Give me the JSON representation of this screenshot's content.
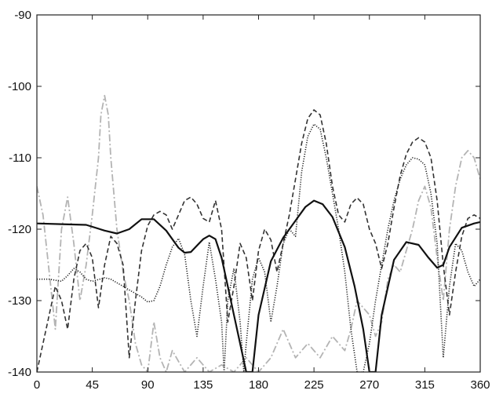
{
  "chart_data": {
    "type": "line",
    "title": "",
    "xlabel": "",
    "ylabel": "",
    "xlim": [
      0,
      360
    ],
    "ylim": [
      -140,
      -90
    ],
    "x_ticks": [
      "0",
      "45",
      "90",
      "135",
      "180",
      "225",
      "270",
      "315",
      "360"
    ],
    "y_ticks": [
      "-90",
      "-100",
      "-110",
      "-120",
      "-130",
      "-140"
    ],
    "grid": false,
    "legend": "none",
    "series": [
      {
        "style": "solid",
        "color": "#111111",
        "x": [
          0,
          20,
          40,
          55,
          65,
          75,
          85,
          95,
          105,
          115,
          120,
          125,
          135,
          140,
          145,
          150,
          155,
          160,
          165,
          170,
          175,
          180,
          190,
          200,
          210,
          218,
          225,
          232,
          240,
          250,
          258,
          265,
          270,
          275,
          280,
          290,
          300,
          310,
          318,
          325,
          330,
          335,
          345,
          355,
          360
        ],
        "y": [
          -119.2,
          -119.3,
          -119.4,
          -120.2,
          -120.6,
          -120.0,
          -118.6,
          -118.6,
          -120.2,
          -122.6,
          -123.3,
          -123.2,
          -121.4,
          -120.9,
          -121.4,
          -124.0,
          -128.0,
          -132.0,
          -136.0,
          -140.0,
          -140.0,
          -132.0,
          -124.5,
          -121.2,
          -118.8,
          -116.9,
          -116.0,
          -116.5,
          -118.3,
          -122.5,
          -128.0,
          -134.0,
          -140.0,
          -140.0,
          -132.0,
          -124.3,
          -121.8,
          -122.2,
          -124.0,
          -125.4,
          -125.0,
          -122.5,
          -119.8,
          -119.2,
          -119.0
        ]
      },
      {
        "style": "dotted",
        "color": "#222222",
        "x": [
          0,
          10,
          20,
          25,
          30,
          35,
          40,
          45,
          55,
          60,
          65,
          70,
          75,
          80,
          85,
          90,
          95,
          100,
          105,
          110,
          115,
          120,
          125,
          130,
          135,
          140,
          145,
          150,
          152,
          155,
          160,
          165,
          168,
          170,
          175,
          180,
          185,
          190,
          195,
          200,
          205,
          210,
          215,
          220,
          225,
          230,
          235,
          240,
          245,
          250,
          255,
          260,
          265,
          270,
          275,
          280,
          285,
          290,
          295,
          300,
          305,
          310,
          315,
          320,
          325,
          330,
          335,
          340,
          345,
          350,
          355,
          360
        ],
        "y": [
          -127.0,
          -127.0,
          -127.3,
          -126.5,
          -125.5,
          -126.0,
          -127.0,
          -127.3,
          -126.8,
          -127.0,
          -127.5,
          -128.0,
          -128.5,
          -129.0,
          -129.5,
          -130.2,
          -130.0,
          -128.0,
          -125.0,
          -122.5,
          -121.3,
          -123.5,
          -130.0,
          -135.0,
          -128.0,
          -121.8,
          -127.0,
          -133.0,
          -140.0,
          -130.0,
          -125.5,
          -133.0,
          -140.0,
          -136.0,
          -127.0,
          -124.0,
          -126.0,
          -133.0,
          -128.0,
          -122.0,
          -120.0,
          -121.0,
          -112.0,
          -107.0,
          -105.3,
          -106.0,
          -110.0,
          -115.0,
          -120.0,
          -126.0,
          -134.0,
          -140.0,
          -140.0,
          -136.0,
          -130.0,
          -125.0,
          -120.0,
          -116.0,
          -113.0,
          -111.0,
          -110.0,
          -110.2,
          -111.0,
          -115.0,
          -122.0,
          -138.0,
          -128.0,
          -122.0,
          -123.0,
          -126.0,
          -128.0,
          -127.0
        ]
      },
      {
        "style": "dashed",
        "color": "#333333",
        "x": [
          0,
          5,
          10,
          15,
          20,
          25,
          30,
          35,
          40,
          45,
          50,
          55,
          60,
          65,
          70,
          75,
          80,
          85,
          90,
          95,
          100,
          105,
          110,
          115,
          120,
          125,
          130,
          135,
          140,
          145,
          150,
          155,
          160,
          165,
          170,
          175,
          180,
          185,
          190,
          195,
          200,
          205,
          210,
          215,
          220,
          225,
          230,
          235,
          240,
          245,
          250,
          255,
          260,
          265,
          270,
          275,
          280,
          285,
          290,
          295,
          300,
          305,
          310,
          315,
          320,
          325,
          330,
          335,
          340,
          345,
          350,
          355,
          360
        ],
        "y": [
          -140.0,
          -136.0,
          -132.0,
          -128.0,
          -130.0,
          -134.0,
          -127.0,
          -123.0,
          -122.0,
          -124.0,
          -131.0,
          -125.0,
          -121.0,
          -122.0,
          -125.0,
          -138.0,
          -130.0,
          -123.0,
          -119.5,
          -118.0,
          -117.5,
          -118.0,
          -120.0,
          -118.0,
          -116.0,
          -115.5,
          -116.5,
          -118.5,
          -119.0,
          -116.0,
          -120.0,
          -133.0,
          -128.0,
          -122.0,
          -124.0,
          -130.0,
          -123.0,
          -120.0,
          -121.5,
          -126.0,
          -122.0,
          -118.0,
          -113.0,
          -108.0,
          -104.5,
          -103.3,
          -104.0,
          -108.0,
          -114.0,
          -118.0,
          -119.0,
          -116.5,
          -115.6,
          -116.5,
          -120.0,
          -122.0,
          -125.5,
          -122.0,
          -117.0,
          -112.5,
          -109.5,
          -107.8,
          -107.2,
          -107.8,
          -110.0,
          -116.0,
          -125.0,
          -132.0,
          -126.0,
          -121.0,
          -118.5,
          -118.0,
          -118.5
        ]
      },
      {
        "style": "dash-dot",
        "color": "#b4b4b4",
        "x": [
          0,
          5,
          10,
          15,
          20,
          25,
          30,
          35,
          40,
          45,
          50,
          52,
          55,
          58,
          60,
          65,
          70,
          75,
          80,
          85,
          90,
          95,
          100,
          105,
          110,
          120,
          130,
          140,
          150,
          160,
          170,
          180,
          190,
          200,
          210,
          220,
          230,
          240,
          250,
          255,
          260,
          265,
          270,
          275,
          280,
          285,
          290,
          295,
          300,
          305,
          310,
          315,
          320,
          325,
          330,
          335,
          340,
          345,
          350,
          355,
          360
        ],
        "y": [
          -114.0,
          -118.0,
          -126.0,
          -134.0,
          -120.0,
          -115.5,
          -122.0,
          -130.0,
          -125.0,
          -118.0,
          -110.0,
          -104.0,
          -101.3,
          -104.0,
          -110.0,
          -120.0,
          -126.0,
          -130.0,
          -136.0,
          -139.0,
          -140.0,
          -133.0,
          -138.0,
          -140.0,
          -137.0,
          -140.0,
          -138.0,
          -140.0,
          -139.0,
          -140.0,
          -138.0,
          -140.0,
          -138.0,
          -134.0,
          -138.0,
          -136.0,
          -138.0,
          -135.0,
          -137.0,
          -134.0,
          -130.0,
          -131.0,
          -132.0,
          -135.0,
          -133.0,
          -127.0,
          -125.0,
          -126.0,
          -123.0,
          -120.0,
          -116.0,
          -114.0,
          -117.0,
          -124.0,
          -130.0,
          -120.0,
          -114.0,
          -110.0,
          -109.0,
          -110.0,
          -113.0
        ]
      }
    ]
  }
}
